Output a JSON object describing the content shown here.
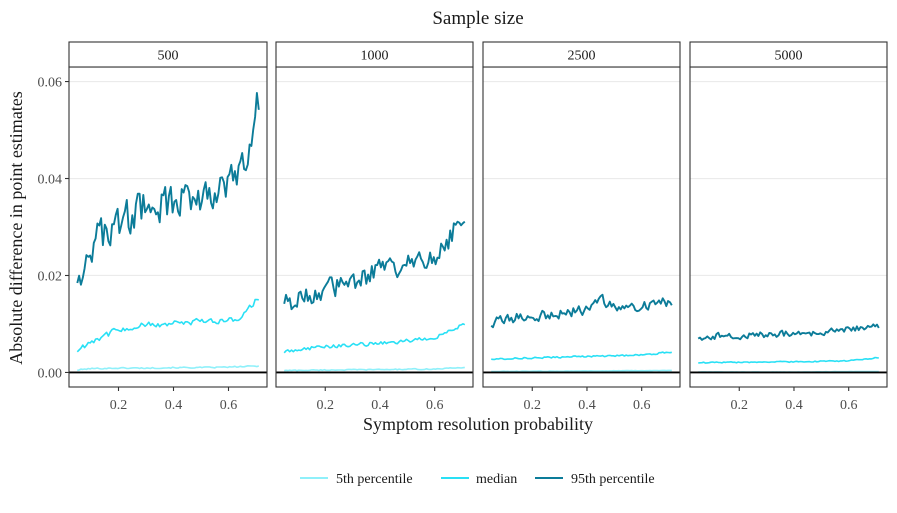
{
  "chart_data": {
    "type": "line",
    "title": "Sample size",
    "xlabel": "Symptom resolution probability",
    "ylabel": "Absolute difference in point estimates",
    "xlim": [
      0.02,
      0.74
    ],
    "ylim": [
      -0.003,
      0.063
    ],
    "x_ticks": [
      "0.2",
      "0.4",
      "0.6"
    ],
    "x_tick_values": [
      0.2,
      0.4,
      0.6
    ],
    "y_ticks": [
      "0.00",
      "0.02",
      "0.04",
      "0.06"
    ],
    "y_tick_values": [
      0.0,
      0.02,
      0.04,
      0.06
    ],
    "reference_line_y": 0,
    "grid": true,
    "legend_position": "bottom",
    "series_meta": [
      {
        "key": "p5",
        "name": "5th percentile",
        "color": "#8FF0FA"
      },
      {
        "key": "median",
        "name": "median",
        "color": "#29E0F5"
      },
      {
        "key": "p95",
        "name": "95th percentile",
        "color": "#0C7C99"
      }
    ],
    "facets": [
      {
        "label": "500",
        "series": [
          {
            "name": "5th percentile",
            "x": [
              0.05,
              0.1,
              0.2,
              0.3,
              0.4,
              0.5,
              0.6,
              0.7
            ],
            "values": [
              0.0005,
              0.0008,
              0.0009,
              0.0009,
              0.001,
              0.001,
              0.0011,
              0.0013
            ]
          },
          {
            "name": "median",
            "x": [
              0.05,
              0.1,
              0.2,
              0.3,
              0.4,
              0.5,
              0.6,
              0.65,
              0.7
            ],
            "values": [
              0.0045,
              0.0065,
              0.0088,
              0.0098,
              0.01,
              0.0105,
              0.0108,
              0.0115,
              0.015
            ]
          },
          {
            "name": "95th percentile",
            "x": [
              0.05,
              0.1,
              0.2,
              0.3,
              0.4,
              0.5,
              0.6,
              0.65,
              0.68,
              0.7
            ],
            "values": [
              0.02,
              0.026,
              0.031,
              0.034,
              0.035,
              0.037,
              0.038,
              0.042,
              0.044,
              0.056
            ]
          }
        ]
      },
      {
        "label": "1000",
        "series": [
          {
            "name": "5th percentile",
            "x": [
              0.05,
              0.2,
              0.4,
              0.6,
              0.7
            ],
            "values": [
              0.0004,
              0.0005,
              0.0006,
              0.0007,
              0.001
            ]
          },
          {
            "name": "median",
            "x": [
              0.05,
              0.1,
              0.2,
              0.3,
              0.4,
              0.5,
              0.6,
              0.7
            ],
            "values": [
              0.0042,
              0.0048,
              0.0053,
              0.0057,
              0.006,
              0.0065,
              0.0072,
              0.0098
            ]
          },
          {
            "name": "95th percentile",
            "x": [
              0.05,
              0.1,
              0.2,
              0.3,
              0.4,
              0.5,
              0.6,
              0.65,
              0.7
            ],
            "values": [
              0.015,
              0.015,
              0.017,
              0.019,
              0.021,
              0.022,
              0.024,
              0.027,
              0.033
            ]
          }
        ]
      },
      {
        "label": "2500",
        "series": [
          {
            "name": "5th percentile",
            "x": [
              0.05,
              0.4,
              0.7
            ],
            "values": [
              0.0002,
              0.0003,
              0.0004
            ]
          },
          {
            "name": "median",
            "x": [
              0.05,
              0.2,
              0.4,
              0.6,
              0.7
            ],
            "values": [
              0.0028,
              0.003,
              0.0033,
              0.0036,
              0.0042
            ]
          },
          {
            "name": "95th percentile",
            "x": [
              0.05,
              0.1,
              0.2,
              0.3,
              0.4,
              0.45,
              0.5,
              0.6,
              0.7
            ],
            "values": [
              0.01,
              0.011,
              0.0115,
              0.012,
              0.013,
              0.0155,
              0.013,
              0.014,
              0.0145
            ]
          }
        ]
      },
      {
        "label": "5000",
        "series": [
          {
            "name": "5th percentile",
            "x": [
              0.05,
              0.4,
              0.7
            ],
            "values": [
              0.0001,
              0.0001,
              0.0002
            ]
          },
          {
            "name": "median",
            "x": [
              0.05,
              0.2,
              0.4,
              0.6,
              0.7
            ],
            "values": [
              0.002,
              0.0021,
              0.0022,
              0.0024,
              0.003
            ]
          },
          {
            "name": "95th percentile",
            "x": [
              0.05,
              0.1,
              0.2,
              0.3,
              0.4,
              0.5,
              0.6,
              0.7
            ],
            "values": [
              0.0072,
              0.0075,
              0.0075,
              0.0078,
              0.008,
              0.0082,
              0.0088,
              0.0095
            ]
          }
        ]
      }
    ]
  }
}
